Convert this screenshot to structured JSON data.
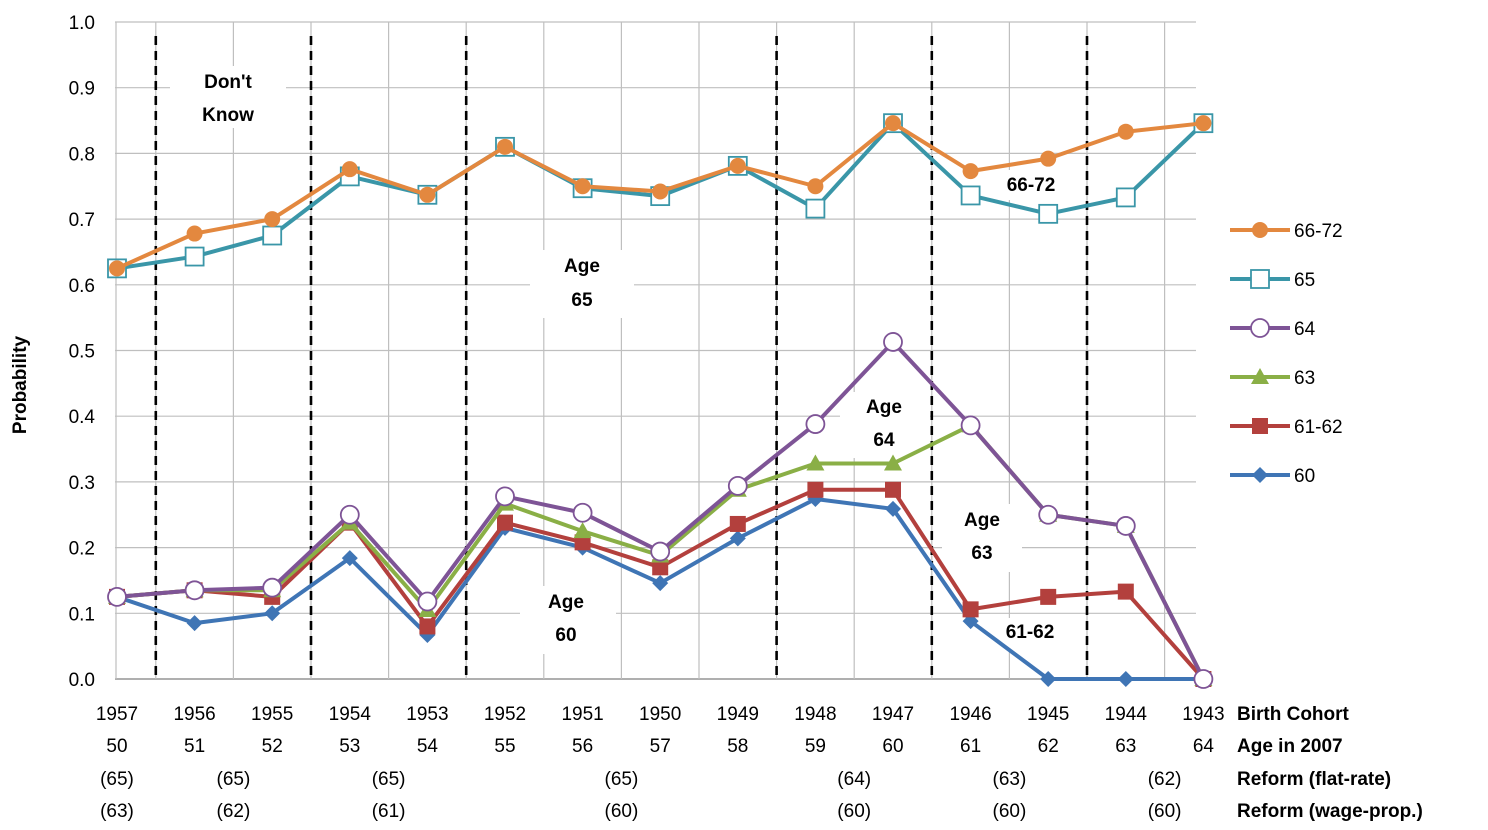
{
  "chart_data": {
    "type": "line",
    "ylabel": "Probability",
    "ylim": [
      0,
      1
    ],
    "yticks": [
      "0.0",
      "0.1",
      "0.2",
      "0.3",
      "0.4",
      "0.5",
      "0.6",
      "0.7",
      "0.8",
      "0.9",
      "1.0"
    ],
    "grid": true,
    "legend_position": "right",
    "x": [
      "1957",
      "1956",
      "1955",
      "1954",
      "1953",
      "1952",
      "1951",
      "1950",
      "1949",
      "1948",
      "1947",
      "1946",
      "1945",
      "1944",
      "1943"
    ],
    "row_labels": {
      "birth_cohort": "Birth Cohort",
      "age_2007": "Age in 2007",
      "reform_flat": "Reform (flat-rate)",
      "reform_wage": "Reform (wage-prop.)"
    },
    "age_in_2007": [
      "50",
      "51",
      "52",
      "53",
      "54",
      "55",
      "56",
      "57",
      "58",
      "59",
      "60",
      "61",
      "62",
      "63",
      "64"
    ],
    "reform_flat_rate": [
      "(65)",
      "(65)",
      "(65)",
      "(65)",
      "(64)",
      "(63)",
      "(62)"
    ],
    "reform_wage_prop": [
      "(63)",
      "(62)",
      "(61)",
      "(60)",
      "(60)",
      "(60)",
      "(60)"
    ],
    "series": [
      {
        "name": "66-72",
        "color": "#E3883F",
        "marker": "circle-filled",
        "values": [
          0.625,
          0.678,
          0.7,
          0.776,
          0.737,
          0.81,
          0.75,
          0.742,
          0.781,
          0.75,
          0.846,
          0.773,
          0.792,
          0.833,
          0.846
        ]
      },
      {
        "name": "65",
        "color": "#3A96A8",
        "marker": "square-open",
        "values": [
          0.625,
          0.643,
          0.675,
          0.765,
          0.737,
          0.81,
          0.747,
          0.735,
          0.781,
          0.716,
          0.846,
          0.736,
          0.708,
          0.733,
          0.846
        ]
      },
      {
        "name": "64",
        "color": "#7E5496",
        "marker": "circle-open",
        "values": [
          0.125,
          0.135,
          0.139,
          0.25,
          0.118,
          0.278,
          0.253,
          0.194,
          0.294,
          0.388,
          0.513,
          0.386,
          0.25,
          0.233,
          0.0
        ]
      },
      {
        "name": "63",
        "color": "#8AAF46",
        "marker": "triangle-filled",
        "values": [
          0.125,
          0.135,
          0.135,
          0.238,
          0.105,
          0.267,
          0.225,
          0.188,
          0.288,
          0.328,
          0.328,
          0.386,
          0.25,
          0.233,
          0.0
        ]
      },
      {
        "name": "61-62",
        "color": "#B3403D",
        "marker": "square-filled",
        "values": [
          0.125,
          0.135,
          0.125,
          0.238,
          0.08,
          0.238,
          0.208,
          0.17,
          0.236,
          0.288,
          0.288,
          0.106,
          0.125,
          0.133,
          0.0
        ]
      },
      {
        "name": "60",
        "color": "#3F75B5",
        "marker": "diamond-filled",
        "values": [
          0.125,
          0.085,
          0.1,
          0.184,
          0.067,
          0.23,
          0.2,
          0.146,
          0.214,
          0.274,
          0.259,
          0.088,
          0.0,
          0.0,
          0.0
        ]
      }
    ],
    "annotations": {
      "dont_know": [
        "Don't",
        "Know"
      ],
      "age65": [
        "Age",
        "65"
      ],
      "age64": [
        "Age",
        "64"
      ],
      "age63": [
        "Age",
        "63"
      ],
      "age60": [
        "Age",
        "60"
      ],
      "band_66_72": "66-72",
      "band_61_62": "61-62"
    }
  }
}
